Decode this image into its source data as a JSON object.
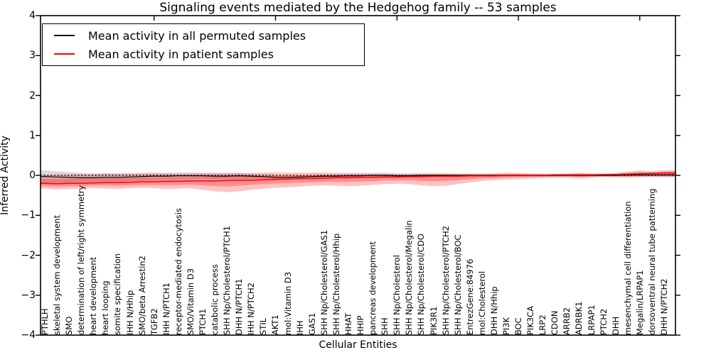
{
  "chart_data": {
    "type": "line",
    "title": "Signaling events mediated by the Hedgehog family -- 53 samples",
    "xlabel": "Cellular Entities",
    "ylabel": "Inferred Activity",
    "ylim": [
      -4,
      4
    ],
    "yticks": [
      4,
      3,
      2,
      1,
      0,
      -1,
      -2,
      -3,
      -4
    ],
    "grid": false,
    "legend_position": "upper left",
    "zero_line": "dotted black at y=0",
    "x_major_tick_indices": [
      9,
      19,
      29,
      39,
      49
    ],
    "categories": [
      "PTHLH",
      "skeletal system development",
      "SMO",
      "determination of left/right symmetry",
      "heart development",
      "heart looping",
      "somite specification",
      "IHH N/Hhip",
      "SMO/beta Arrestin2",
      "TGFB2",
      "IHH N/PTCH1",
      "receptor-mediated endocytosis",
      "SMO/Vitamin D3",
      "PTCH1",
      "catabolic process",
      "SHH Np/Cholesterol/PTCH1",
      "DHH N/PTCH1",
      "IHH N/PTCH2",
      "STIL",
      "AKT1",
      "mol:Vitamin D3",
      "IHH",
      "GAS1",
      "SHH Np/Cholesterol/GAS1",
      "SHH Np/Cholesterol/Hhip",
      "HHAT",
      "HHIP",
      "pancreas development",
      "SHH",
      "SHH Np/Cholesterol",
      "SHH Np/Cholesterol/Megalin",
      "SHH Np/Cholesterol/CDO",
      "PIK3R1",
      "SHH Np/Cholesterol/PTCH2",
      "SHH Np/Cholesterol/BOC",
      "EntrezGene:84976",
      "mol:Cholesterol",
      "DHH N/Hhip",
      "PI3K",
      "BOC",
      "PIK3CA",
      "LRP2",
      "CDON",
      "ARRB2",
      "ADRBK1",
      "LRPAP1",
      "PTCH2",
      "DHH",
      "mesenchymal cell differentiation",
      "Megalin/LRPAP1",
      "dorsoventral neural tube patterning",
      "DHH N/PTCH2"
    ],
    "series": [
      {
        "name": "Mean activity in all permuted samples",
        "color": "#000000",
        "band_color": "#999999",
        "values": [
          -0.03,
          -0.04,
          -0.05,
          -0.06,
          -0.06,
          -0.05,
          -0.05,
          -0.04,
          -0.03,
          -0.02,
          -0.02,
          -0.01,
          -0.01,
          -0.01,
          -0.02,
          -0.02,
          -0.01,
          -0.02,
          -0.03,
          -0.05,
          -0.05,
          -0.04,
          -0.03,
          -0.02,
          -0.02,
          -0.01,
          -0.01,
          0.0,
          0.0,
          -0.01,
          -0.01,
          0.0,
          0.0,
          0.0,
          0.0,
          0.0,
          0.0,
          0.0,
          0.0,
          0.0,
          0.0,
          0.0,
          0.0,
          0.0,
          0.0,
          0.0,
          0.0,
          0.0,
          0.01,
          0.01,
          0.01,
          0.01
        ],
        "band_halfwidth": [
          0.16,
          0.14,
          0.13,
          0.12,
          0.11,
          0.11,
          0.1,
          0.1,
          0.09,
          0.09,
          0.08,
          0.08,
          0.08,
          0.07,
          0.07,
          0.07,
          0.07,
          0.06,
          0.06,
          0.06,
          0.06,
          0.05,
          0.05,
          0.05,
          0.05,
          0.05,
          0.05,
          0.04,
          0.04,
          0.04,
          0.04,
          0.04,
          0.04,
          0.04,
          0.04,
          0.04,
          0.03,
          0.03,
          0.03,
          0.03,
          0.03,
          0.03,
          0.03,
          0.03,
          0.03,
          0.03,
          0.03,
          0.03,
          0.04,
          0.04,
          0.04,
          0.05
        ]
      },
      {
        "name": "Mean activity in patient samples",
        "color": "#ff0000",
        "band_color": "#ff0000",
        "values": [
          -0.2,
          -0.21,
          -0.2,
          -0.2,
          -0.19,
          -0.18,
          -0.18,
          -0.17,
          -0.16,
          -0.16,
          -0.15,
          -0.15,
          -0.14,
          -0.14,
          -0.14,
          -0.13,
          -0.12,
          -0.12,
          -0.11,
          -0.1,
          -0.09,
          -0.08,
          -0.08,
          -0.07,
          -0.06,
          -0.06,
          -0.05,
          -0.05,
          -0.04,
          -0.04,
          -0.03,
          -0.03,
          -0.02,
          -0.02,
          -0.02,
          -0.01,
          -0.01,
          -0.01,
          0.0,
          0.0,
          0.0,
          0.0,
          0.01,
          0.01,
          0.01,
          0.01,
          0.02,
          0.02,
          0.03,
          0.04,
          0.05,
          0.06
        ],
        "band_upper": [
          0.02,
          0.02,
          0.03,
          0.03,
          0.03,
          0.04,
          0.04,
          0.04,
          0.04,
          0.05,
          0.05,
          0.05,
          0.05,
          0.06,
          0.06,
          0.06,
          0.06,
          0.06,
          0.07,
          0.07,
          0.07,
          0.07,
          0.07,
          0.07,
          0.06,
          0.06,
          0.06,
          0.06,
          0.06,
          0.05,
          0.05,
          0.05,
          0.05,
          0.05,
          0.04,
          0.04,
          0.04,
          0.05,
          0.06,
          0.06,
          0.05,
          0.04,
          0.04,
          0.05,
          0.07,
          0.05,
          0.04,
          0.06,
          0.09,
          0.12,
          0.1,
          0.13
        ],
        "band_lower": [
          -0.33,
          -0.35,
          -0.34,
          -0.33,
          -0.32,
          -0.33,
          -0.34,
          -0.32,
          -0.31,
          -0.32,
          -0.34,
          -0.33,
          -0.32,
          -0.36,
          -0.4,
          -0.42,
          -0.4,
          -0.36,
          -0.33,
          -0.31,
          -0.3,
          -0.28,
          -0.26,
          -0.25,
          -0.26,
          -0.27,
          -0.26,
          -0.24,
          -0.22,
          -0.21,
          -0.22,
          -0.25,
          -0.27,
          -0.26,
          -0.22,
          -0.18,
          -0.14,
          -0.12,
          -0.1,
          -0.09,
          -0.08,
          -0.07,
          -0.06,
          -0.06,
          -0.08,
          -0.06,
          -0.04,
          -0.05,
          -0.06,
          -0.05,
          -0.04,
          -0.04
        ]
      }
    ]
  },
  "legend": {
    "items": [
      {
        "label": "Mean activity in all permuted samples",
        "color": "#000000"
      },
      {
        "label": "Mean activity in patient samples",
        "color": "#ff0000"
      }
    ]
  }
}
